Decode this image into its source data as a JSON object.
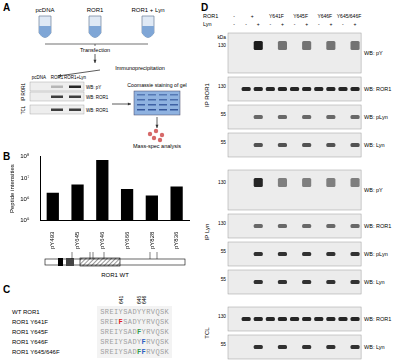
{
  "chart_data": {
    "type": "bar",
    "categories": [
      "pY493",
      "pY645",
      "pY646",
      "pY666",
      "pY828",
      "pY836"
    ],
    "values": [
      2000000,
      5000000,
      70000000,
      3000000,
      1500000,
      4000000
    ],
    "color": "#000000",
    "ylabel": "Peptide intensities",
    "log": "y",
    "ylim": [
      100000,
      100000000
    ],
    "yticks": [
      {
        "value": 100000,
        "label": "10⁵"
      },
      {
        "value": 1000000,
        "label": "10⁶"
      },
      {
        "value": 10000000,
        "label": "10⁷"
      },
      {
        "value": 100000000,
        "label": "10⁸"
      }
    ],
    "grid": false
  },
  "figure": {
    "A": {
      "label": "A",
      "tubes": [
        "pcDNA",
        "ROR1",
        "ROR1 + Lyn"
      ],
      "steps": [
        "Transfection",
        "Immunoprecipitation",
        "Coomassie staining of gel",
        "Mass-spec analysis"
      ],
      "blot": {
        "lanes": [
          "pcDNA",
          "ROR1",
          "ROR1+Lyn"
        ],
        "sections": [
          {
            "name": "IP ROR1",
            "rows": [
              "WB: pY",
              "WB: ROR1"
            ]
          },
          {
            "name": "TCL",
            "rows": [
              "WB: ROR1"
            ]
          }
        ]
      }
    },
    "B": {
      "label": "B",
      "schematic_label": "ROR1 WT"
    },
    "C": {
      "label": "C",
      "positions": [
        "641",
        "645",
        "646"
      ],
      "rows": [
        {
          "name": "WT ROR1",
          "segments": [
            {
              "text": "SREIYSADYYRVQSK",
              "color": "#a0a0a0"
            }
          ]
        },
        {
          "name": "ROR1 Y641F",
          "segments": [
            {
              "text": "SREI",
              "color": "#a0a0a0"
            },
            {
              "text": "F",
              "color": "#e02020"
            },
            {
              "text": "SADYYRVQSK",
              "color": "#a0a0a0"
            }
          ]
        },
        {
          "name": "ROR1 Y645F",
          "segments": [
            {
              "text": "SREIYSAD",
              "color": "#a0a0a0"
            },
            {
              "text": "F",
              "color": "#2f9a4a"
            },
            {
              "text": "YRVQSK",
              "color": "#a0a0a0"
            }
          ]
        },
        {
          "name": "ROR1 Y646F",
          "segments": [
            {
              "text": "SREIYSADY",
              "color": "#a0a0a0"
            },
            {
              "text": "F",
              "color": "#2f5fc0"
            },
            {
              "text": "RVQSK",
              "color": "#a0a0a0"
            }
          ]
        },
        {
          "name": "ROR1 Y645/646F",
          "segments": [
            {
              "text": "SREIYSAD",
              "color": "#a0a0a0"
            },
            {
              "text": "F",
              "color": "#2f9a4a"
            },
            {
              "text": "F",
              "color": "#2f5fc0"
            },
            {
              "text": "RVQSK",
              "color": "#a0a0a0"
            }
          ]
        }
      ]
    },
    "D": {
      "label": "D",
      "header": [
        {
          "name": "ROR1",
          "entries": [
            {
              "text": "-",
              "lanes": 1
            },
            {
              "text": "+",
              "lanes": 2
            },
            {
              "text": "Y641F",
              "lanes": 2
            },
            {
              "text": "Y645F",
              "lanes": 2
            },
            {
              "text": "Y646F",
              "lanes": 2
            },
            {
              "text": "Y645/646F",
              "lanes": 2
            }
          ]
        },
        {
          "name": "Lyn",
          "entries": [
            {
              "text": "-",
              "lanes": 1
            },
            {
              "text": "-",
              "lanes": 1
            },
            {
              "text": "+",
              "lanes": 1
            },
            {
              "text": "-",
              "lanes": 1
            },
            {
              "text": "+",
              "lanes": 1
            },
            {
              "text": "-",
              "lanes": 1
            },
            {
              "text": "+",
              "lanes": 1
            },
            {
              "text": "-",
              "lanes": 1
            },
            {
              "text": "+",
              "lanes": 1
            },
            {
              "text": "-",
              "lanes": 1
            },
            {
              "text": "+",
              "lanes": 1
            }
          ]
        }
      ],
      "unit": "kDa",
      "sections": [
        {
          "name": "IP ROR1",
          "strips": [
            {
              "label": "WB: pY",
              "marker": 130
            },
            {
              "label": "WB: ROR1",
              "marker": 130
            },
            {
              "label": "WB: pLyn",
              "marker": 55
            },
            {
              "label": "WB: Lyn",
              "marker": 55
            }
          ]
        },
        {
          "name": "IP Lyn",
          "strips": [
            {
              "label": "WB: pY",
              "marker": 130
            },
            {
              "label": "WB: ROR1",
              "marker": 130
            },
            {
              "label": "WB: pLyn",
              "marker": 55
            },
            {
              "label": "WB: Lyn",
              "marker": 55
            }
          ]
        },
        {
          "name": "TCL",
          "strips": [
            {
              "label": "WB: ROR1",
              "marker": 130
            },
            {
              "label": "WB: Lyn",
              "marker": 55
            }
          ]
        }
      ]
    }
  }
}
